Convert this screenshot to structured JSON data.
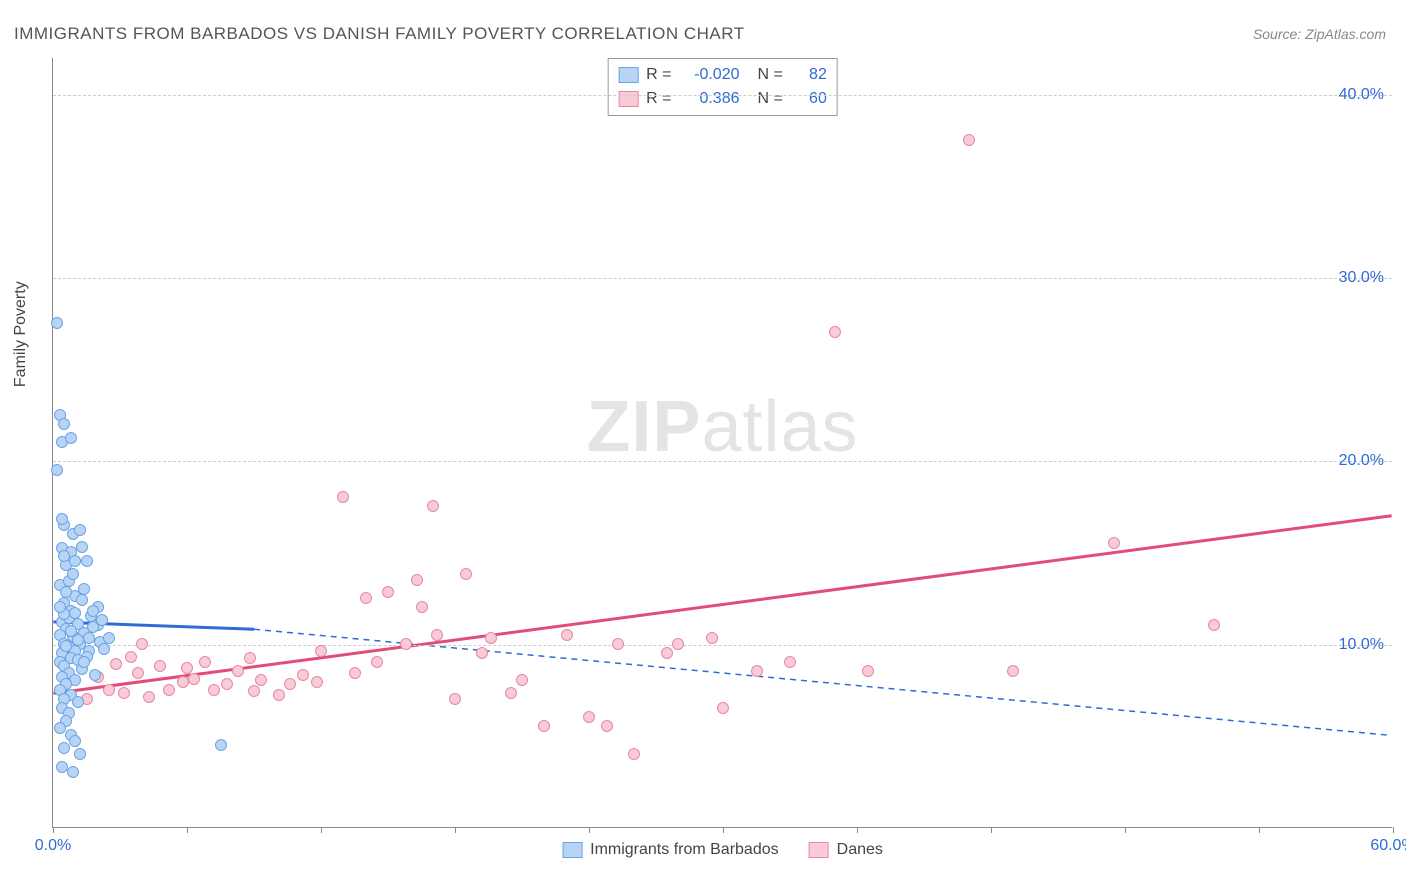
{
  "title": "IMMIGRANTS FROM BARBADOS VS DANISH FAMILY POVERTY CORRELATION CHART",
  "source": "Source: ZipAtlas.com",
  "watermark_zip": "ZIP",
  "watermark_atlas": "atlas",
  "yaxis_title": "Family Poverty",
  "chart": {
    "type": "scatter",
    "xlim": [
      0,
      60
    ],
    "ylim": [
      0,
      42
    ],
    "background_color": "#ffffff",
    "grid_color": "#cccccc",
    "xtick_labels": [
      "0.0%",
      "60.0%"
    ],
    "xtick_positions": [
      0,
      60
    ],
    "xtick_marks": [
      0,
      6,
      12,
      18,
      24,
      30,
      36,
      42,
      48,
      54,
      60
    ],
    "ytick_labels": [
      "10.0%",
      "20.0%",
      "30.0%",
      "40.0%"
    ],
    "ytick_positions": [
      10,
      20,
      30,
      40
    ],
    "axis_label_color": "#2e6bd6"
  },
  "series": {
    "barbados": {
      "label": "Immigrants from Barbados",
      "color_fill": "#b8d4f5",
      "color_stroke": "#6aa3e8",
      "line_color": "#2e6bd6",
      "R": "-0.020",
      "N": "82",
      "trend_solid": {
        "x1": 0,
        "y1": 11.2,
        "x2": 9,
        "y2": 10.8
      },
      "trend_dash": {
        "x1": 9,
        "y1": 10.8,
        "x2": 60,
        "y2": 5.0
      },
      "points": [
        [
          0.2,
          27.5
        ],
        [
          0.3,
          22.5
        ],
        [
          0.5,
          22.0
        ],
        [
          0.4,
          21.0
        ],
        [
          0.8,
          21.2
        ],
        [
          0.2,
          19.5
        ],
        [
          0.5,
          16.5
        ],
        [
          0.9,
          16.0
        ],
        [
          1.2,
          16.2
        ],
        [
          0.4,
          15.2
        ],
        [
          0.8,
          15.0
        ],
        [
          0.6,
          14.3
        ],
        [
          0.3,
          13.2
        ],
        [
          0.7,
          13.4
        ],
        [
          1.0,
          12.6
        ],
        [
          1.3,
          12.4
        ],
        [
          0.5,
          12.2
        ],
        [
          0.8,
          11.8
        ],
        [
          1.5,
          14.5
        ],
        [
          2.0,
          11.0
        ],
        [
          0.4,
          11.2
        ],
        [
          1.1,
          11.1
        ],
        [
          0.6,
          10.8
        ],
        [
          1.8,
          10.9
        ],
        [
          0.3,
          10.5
        ],
        [
          0.9,
          10.4
        ],
        [
          1.4,
          10.6
        ],
        [
          0.5,
          10.0
        ],
        [
          1.2,
          10.0
        ],
        [
          2.1,
          10.1
        ],
        [
          0.7,
          9.8
        ],
        [
          1.0,
          9.6
        ],
        [
          0.4,
          9.5
        ],
        [
          1.6,
          9.6
        ],
        [
          2.3,
          9.7
        ],
        [
          0.8,
          9.2
        ],
        [
          0.3,
          9.0
        ],
        [
          1.1,
          9.1
        ],
        [
          0.5,
          8.8
        ],
        [
          1.3,
          8.6
        ],
        [
          0.7,
          8.4
        ],
        [
          0.4,
          8.2
        ],
        [
          1.0,
          8.0
        ],
        [
          0.6,
          7.8
        ],
        [
          1.5,
          9.3
        ],
        [
          0.3,
          7.5
        ],
        [
          0.8,
          7.2
        ],
        [
          0.5,
          7.0
        ],
        [
          1.9,
          8.3
        ],
        [
          0.4,
          6.5
        ],
        [
          1.1,
          6.8
        ],
        [
          0.7,
          6.2
        ],
        [
          2.5,
          10.3
        ],
        [
          0.6,
          5.8
        ],
        [
          0.3,
          5.4
        ],
        [
          0.8,
          5.0
        ],
        [
          1.0,
          4.7
        ],
        [
          0.5,
          4.3
        ],
        [
          1.2,
          4.0
        ],
        [
          0.4,
          3.3
        ],
        [
          0.9,
          3.0
        ],
        [
          7.5,
          4.5
        ],
        [
          2.0,
          12.0
        ],
        [
          1.7,
          11.5
        ],
        [
          0.6,
          12.8
        ],
        [
          1.4,
          13.0
        ],
        [
          0.9,
          13.8
        ],
        [
          0.5,
          14.8
        ],
        [
          1.0,
          14.5
        ],
        [
          1.3,
          15.3
        ],
        [
          0.7,
          11.4
        ],
        [
          0.4,
          16.8
        ],
        [
          1.1,
          10.2
        ],
        [
          0.8,
          10.7
        ],
        [
          1.6,
          10.3
        ],
        [
          0.5,
          11.6
        ],
        [
          1.8,
          11.8
        ],
        [
          2.2,
          11.3
        ],
        [
          0.3,
          12.0
        ],
        [
          1.0,
          11.7
        ],
        [
          0.6,
          9.9
        ],
        [
          1.4,
          9.0
        ]
      ]
    },
    "danes": {
      "label": "Danes",
      "color_fill": "#f9cbd6",
      "color_stroke": "#e888a2",
      "line_color": "#e24c78",
      "R": "0.386",
      "N": "60",
      "trend_solid": {
        "x1": 0,
        "y1": 7.3,
        "x2": 60,
        "y2": 17.0
      },
      "points": [
        [
          2.5,
          7.5
        ],
        [
          3.2,
          7.3
        ],
        [
          3.8,
          8.4
        ],
        [
          4.3,
          7.1
        ],
        [
          4.8,
          8.8
        ],
        [
          5.2,
          7.5
        ],
        [
          5.8,
          7.9
        ],
        [
          6.3,
          8.1
        ],
        [
          6.8,
          9.0
        ],
        [
          7.2,
          7.5
        ],
        [
          7.8,
          7.8
        ],
        [
          8.3,
          8.5
        ],
        [
          8.8,
          9.2
        ],
        [
          9.3,
          8.0
        ],
        [
          4.0,
          10.0
        ],
        [
          10.1,
          7.2
        ],
        [
          10.6,
          7.8
        ],
        [
          11.2,
          8.3
        ],
        [
          12.0,
          9.6
        ],
        [
          13.0,
          18.0
        ],
        [
          13.5,
          8.4
        ],
        [
          14.0,
          12.5
        ],
        [
          14.5,
          9.0
        ],
        [
          15.0,
          12.8
        ],
        [
          15.8,
          10.0
        ],
        [
          16.3,
          13.5
        ],
        [
          16.5,
          12.0
        ],
        [
          17.0,
          17.5
        ],
        [
          17.2,
          10.5
        ],
        [
          18.0,
          7.0
        ],
        [
          18.5,
          13.8
        ],
        [
          19.2,
          9.5
        ],
        [
          19.6,
          10.3
        ],
        [
          20.5,
          7.3
        ],
        [
          21.0,
          8.0
        ],
        [
          22.0,
          5.5
        ],
        [
          23.0,
          10.5
        ],
        [
          24.0,
          6.0
        ],
        [
          24.8,
          5.5
        ],
        [
          25.3,
          10.0
        ],
        [
          26.0,
          4.0
        ],
        [
          27.5,
          9.5
        ],
        [
          28.0,
          10.0
        ],
        [
          29.5,
          10.3
        ],
        [
          30.0,
          6.5
        ],
        [
          31.5,
          8.5
        ],
        [
          33.0,
          9.0
        ],
        [
          35.0,
          27.0
        ],
        [
          36.5,
          8.5
        ],
        [
          41.0,
          37.5
        ],
        [
          43.0,
          8.5
        ],
        [
          47.5,
          15.5
        ],
        [
          52.0,
          11.0
        ],
        [
          1.5,
          7.0
        ],
        [
          2.0,
          8.2
        ],
        [
          2.8,
          8.9
        ],
        [
          3.5,
          9.3
        ],
        [
          6.0,
          8.7
        ],
        [
          9.0,
          7.4
        ],
        [
          11.8,
          7.9
        ]
      ]
    }
  },
  "legend_stat_labels": {
    "R": "R =",
    "N": "N ="
  }
}
